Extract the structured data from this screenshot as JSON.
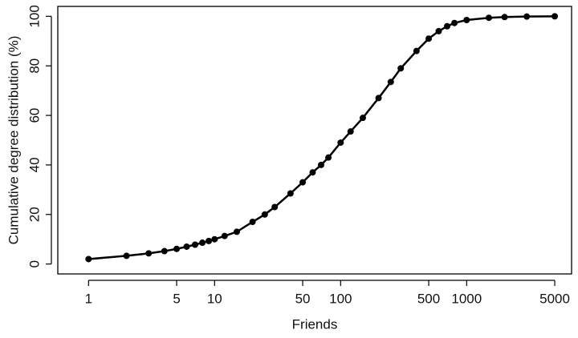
{
  "chart_data": {
    "type": "line",
    "xlabel": "Friends",
    "ylabel": "Cumulative degree distribution (%)",
    "x": [
      1,
      2,
      3,
      4,
      5,
      6,
      7,
      8,
      9,
      10,
      12,
      15,
      20,
      25,
      30,
      40,
      50,
      60,
      70,
      80,
      100,
      120,
      150,
      200,
      250,
      300,
      400,
      500,
      600,
      700,
      800,
      1000,
      1500,
      2000,
      3000,
      5000
    ],
    "values": [
      2,
      3.3,
      4.3,
      5.2,
      6.1,
      7,
      7.8,
      8.6,
      9.3,
      10,
      11.3,
      13,
      17,
      20,
      23,
      28.5,
      33,
      37,
      40,
      43,
      49,
      53.5,
      59,
      67,
      73.5,
      79,
      86,
      91,
      94,
      96,
      97.3,
      98.5,
      99.4,
      99.7,
      99.9,
      100
    ],
    "color": "#000000",
    "xscale": "log",
    "xlim": [
      0.57,
      6800
    ],
    "ylim": [
      -4,
      104
    ],
    "xticks": [
      1,
      5,
      10,
      50,
      100,
      500,
      1000,
      5000
    ],
    "yticks": [
      0,
      20,
      40,
      60,
      80,
      100
    ]
  }
}
